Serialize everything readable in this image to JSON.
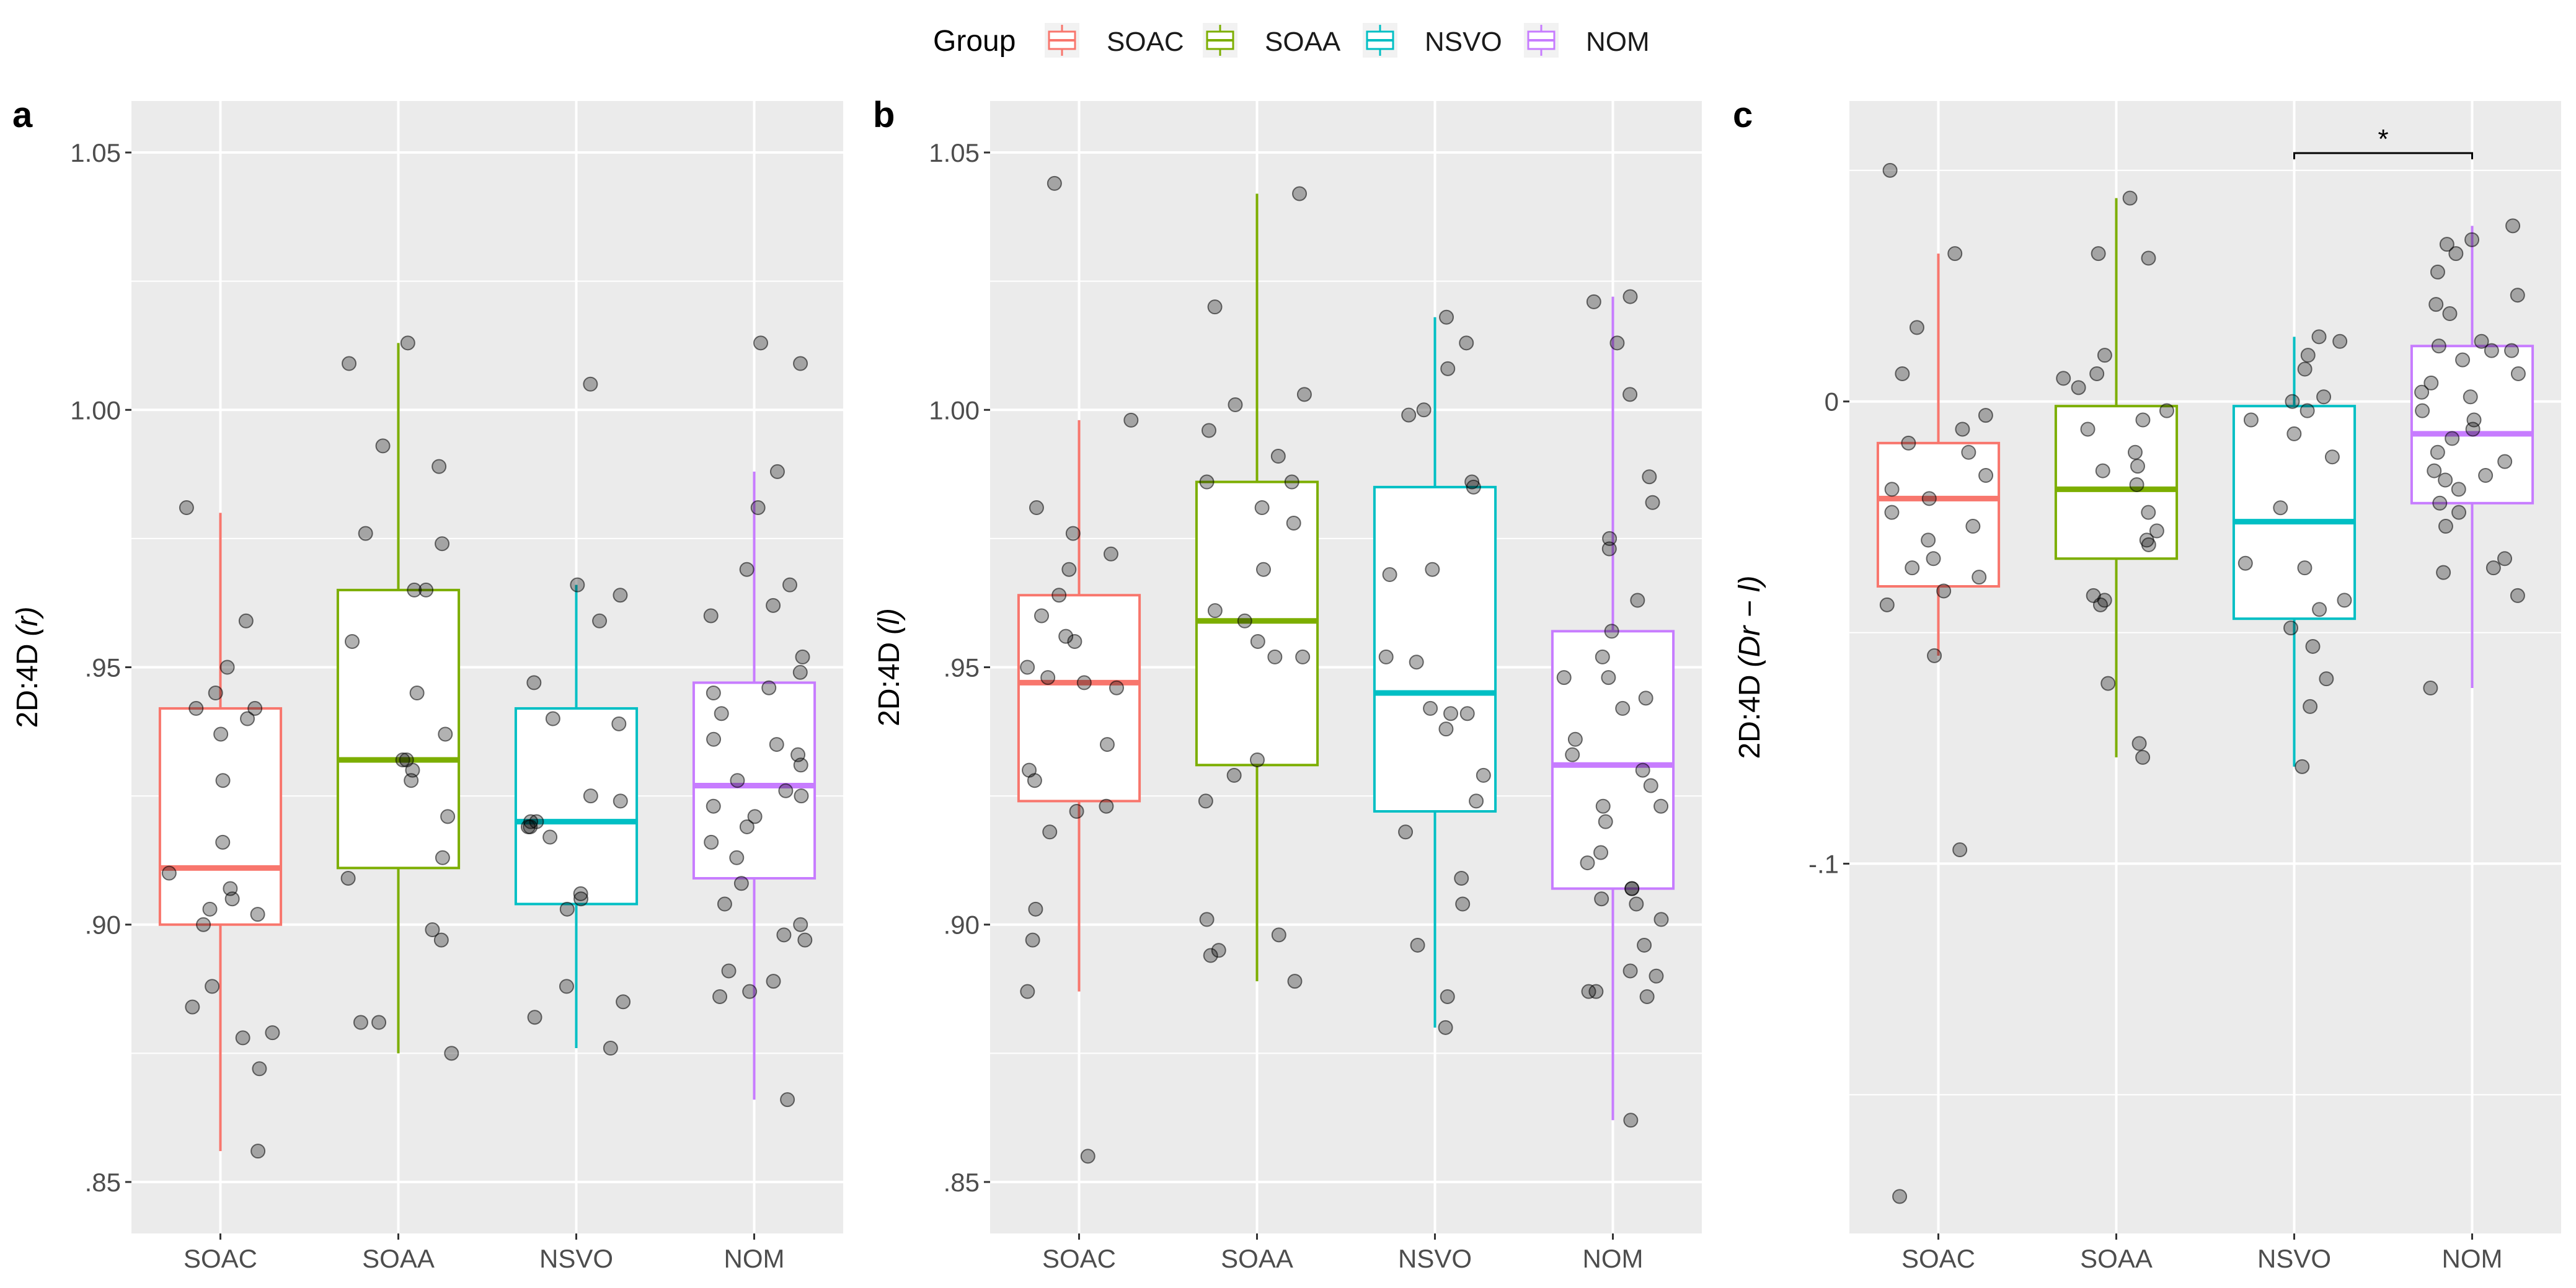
{
  "legend": {
    "title": "Group",
    "items": [
      {
        "label": "SOAC",
        "color": "#F8766D"
      },
      {
        "label": "SOAA",
        "color": "#7CAE00"
      },
      {
        "label": "NSVO",
        "color": "#00BFC4"
      },
      {
        "label": "NOM",
        "color": "#C77CFF"
      }
    ]
  },
  "chart_data": [
    {
      "type": "boxplot",
      "panel_label": "a",
      "ylabel": "2D:4D",
      "ylabel_italic": "(r)",
      "ylim": [
        0.84,
        1.06
      ],
      "yticks": [
        {
          "value": 0.85,
          "label": ".85"
        },
        {
          "value": 0.9,
          "label": ".90"
        },
        {
          "value": 0.95,
          "label": ".95"
        },
        {
          "value": 1.0,
          "label": "1.00"
        },
        {
          "value": 1.05,
          "label": "1.05"
        }
      ],
      "categories": [
        "SOAC",
        "SOAA",
        "NSVO",
        "NOM"
      ],
      "boxes": [
        {
          "group": "SOAC",
          "lower_whisker": 0.856,
          "q1": 0.9,
          "median": 0.911,
          "q3": 0.942,
          "upper_whisker": 0.98,
          "points": [
            0.981,
            0.959,
            0.95,
            0.945,
            0.942,
            0.942,
            0.94,
            0.937,
            0.928,
            0.916,
            0.91,
            0.907,
            0.905,
            0.903,
            0.902,
            0.9,
            0.888,
            0.884,
            0.879,
            0.878,
            0.872,
            0.856
          ]
        },
        {
          "group": "SOAA",
          "lower_whisker": 0.875,
          "q1": 0.911,
          "median": 0.932,
          "q3": 0.965,
          "upper_whisker": 1.013,
          "points": [
            1.013,
            1.009,
            0.993,
            0.989,
            0.976,
            0.974,
            0.965,
            0.965,
            0.955,
            0.945,
            0.937,
            0.932,
            0.932,
            0.93,
            0.928,
            0.921,
            0.913,
            0.909,
            0.899,
            0.897,
            0.881,
            0.881,
            0.875
          ]
        },
        {
          "group": "NSVO",
          "lower_whisker": 0.876,
          "q1": 0.904,
          "median": 0.92,
          "q3": 0.942,
          "upper_whisker": 0.966,
          "points": [
            1.005,
            0.966,
            0.964,
            0.959,
            0.947,
            0.94,
            0.939,
            0.925,
            0.924,
            0.92,
            0.92,
            0.919,
            0.919,
            0.917,
            0.906,
            0.905,
            0.903,
            0.888,
            0.885,
            0.882,
            0.876
          ]
        },
        {
          "group": "NOM",
          "lower_whisker": 0.866,
          "q1": 0.909,
          "median": 0.927,
          "q3": 0.947,
          "upper_whisker": 0.988,
          "points": [
            1.013,
            1.009,
            0.988,
            0.981,
            0.969,
            0.966,
            0.962,
            0.96,
            0.952,
            0.949,
            0.946,
            0.945,
            0.941,
            0.936,
            0.935,
            0.933,
            0.931,
            0.928,
            0.926,
            0.925,
            0.923,
            0.921,
            0.919,
            0.916,
            0.913,
            0.908,
            0.904,
            0.9,
            0.898,
            0.897,
            0.891,
            0.889,
            0.887,
            0.886,
            0.866
          ]
        }
      ]
    },
    {
      "type": "boxplot",
      "panel_label": "b",
      "ylabel": "2D:4D",
      "ylabel_italic": "(l)",
      "ylim": [
        0.84,
        1.06
      ],
      "yticks": [
        {
          "value": 0.85,
          "label": ".85"
        },
        {
          "value": 0.9,
          "label": ".90"
        },
        {
          "value": 0.95,
          "label": ".95"
        },
        {
          "value": 1.0,
          "label": "1.00"
        },
        {
          "value": 1.05,
          "label": "1.05"
        }
      ],
      "categories": [
        "SOAC",
        "SOAA",
        "NSVO",
        "NOM"
      ],
      "boxes": [
        {
          "group": "SOAC",
          "lower_whisker": 0.887,
          "q1": 0.924,
          "median": 0.947,
          "q3": 0.964,
          "upper_whisker": 0.998,
          "points": [
            1.044,
            0.998,
            0.981,
            0.976,
            0.972,
            0.969,
            0.964,
            0.96,
            0.956,
            0.955,
            0.95,
            0.948,
            0.947,
            0.946,
            0.935,
            0.93,
            0.928,
            0.923,
            0.922,
            0.918,
            0.903,
            0.897,
            0.887,
            0.855
          ]
        },
        {
          "group": "SOAA",
          "lower_whisker": 0.889,
          "q1": 0.931,
          "median": 0.959,
          "q3": 0.986,
          "upper_whisker": 1.042,
          "points": [
            1.042,
            1.02,
            1.003,
            1.001,
            0.996,
            0.991,
            0.986,
            0.986,
            0.981,
            0.978,
            0.969,
            0.961,
            0.959,
            0.955,
            0.952,
            0.952,
            0.932,
            0.929,
            0.924,
            0.901,
            0.898,
            0.895,
            0.894,
            0.889
          ]
        },
        {
          "group": "NSVO",
          "lower_whisker": 0.88,
          "q1": 0.922,
          "median": 0.945,
          "q3": 0.985,
          "upper_whisker": 1.018,
          "points": [
            1.018,
            1.013,
            1.008,
            1.0,
            0.999,
            0.986,
            0.985,
            0.969,
            0.968,
            0.952,
            0.951,
            0.942,
            0.941,
            0.941,
            0.938,
            0.929,
            0.924,
            0.918,
            0.909,
            0.904,
            0.896,
            0.886,
            0.88
          ]
        },
        {
          "group": "NOM",
          "lower_whisker": 0.862,
          "q1": 0.907,
          "median": 0.931,
          "q3": 0.957,
          "upper_whisker": 1.022,
          "points": [
            1.022,
            1.021,
            1.013,
            1.003,
            0.987,
            0.982,
            0.975,
            0.973,
            0.963,
            0.957,
            0.952,
            0.948,
            0.948,
            0.944,
            0.942,
            0.936,
            0.933,
            0.93,
            0.927,
            0.923,
            0.923,
            0.92,
            0.914,
            0.912,
            0.907,
            0.907,
            0.905,
            0.904,
            0.901,
            0.896,
            0.891,
            0.89,
            0.887,
            0.887,
            0.886,
            0.862
          ]
        }
      ]
    },
    {
      "type": "boxplot",
      "panel_label": "c",
      "ylabel": "2D:4D",
      "ylabel_italic": "(Dr − l)",
      "ylim": [
        -0.18,
        0.065
      ],
      "yticks": [
        {
          "value": -0.1,
          "label": "-.1"
        },
        {
          "value": 0.0,
          "label": "0"
        }
      ],
      "minor_gridlines": [
        -0.15,
        -0.05,
        0.05
      ],
      "categories": [
        "SOAC",
        "SOAA",
        "NSVO",
        "NOM"
      ],
      "significance": {
        "from": "NSVO",
        "to": "NOM",
        "y": 0.065,
        "label": "*"
      },
      "boxes": [
        {
          "group": "SOAC",
          "lower_whisker": -0.055,
          "q1": -0.04,
          "median": -0.021,
          "q3": -0.009,
          "upper_whisker": 0.032,
          "points": [
            0.05,
            0.032,
            0.016,
            0.006,
            -0.003,
            -0.006,
            -0.009,
            -0.011,
            -0.016,
            -0.019,
            -0.021,
            -0.024,
            -0.027,
            -0.03,
            -0.034,
            -0.036,
            -0.038,
            -0.041,
            -0.044,
            -0.055,
            -0.097,
            -0.172
          ]
        },
        {
          "group": "SOAA",
          "lower_whisker": -0.077,
          "q1": -0.034,
          "median": -0.019,
          "q3": -0.001,
          "upper_whisker": 0.044,
          "points": [
            0.044,
            0.032,
            0.031,
            0.01,
            0.006,
            0.005,
            0.003,
            -0.002,
            -0.004,
            -0.006,
            -0.011,
            -0.014,
            -0.015,
            -0.018,
            -0.024,
            -0.028,
            -0.03,
            -0.031,
            -0.042,
            -0.043,
            -0.044,
            -0.061,
            -0.074,
            -0.077
          ]
        },
        {
          "group": "NSVO",
          "lower_whisker": -0.079,
          "q1": -0.047,
          "median": -0.026,
          "q3": -0.001,
          "upper_whisker": 0.014,
          "points": [
            0.014,
            0.013,
            0.01,
            0.007,
            0.001,
            0.0,
            -0.002,
            -0.004,
            -0.007,
            -0.012,
            -0.023,
            -0.035,
            -0.036,
            -0.043,
            -0.045,
            -0.049,
            -0.053,
            -0.06,
            -0.066,
            -0.079
          ]
        },
        {
          "group": "NOM",
          "lower_whisker": -0.062,
          "q1": -0.022,
          "median": -0.007,
          "q3": 0.012,
          "upper_whisker": 0.038,
          "points": [
            0.038,
            0.035,
            0.034,
            0.032,
            0.028,
            0.023,
            0.021,
            0.019,
            0.013,
            0.012,
            0.011,
            0.011,
            0.009,
            0.006,
            0.004,
            0.002,
            0.001,
            -0.002,
            -0.004,
            -0.006,
            -0.008,
            -0.011,
            -0.013,
            -0.015,
            -0.016,
            -0.017,
            -0.019,
            -0.022,
            -0.024,
            -0.027,
            -0.034,
            -0.036,
            -0.037,
            -0.042,
            -0.062
          ]
        }
      ]
    }
  ]
}
